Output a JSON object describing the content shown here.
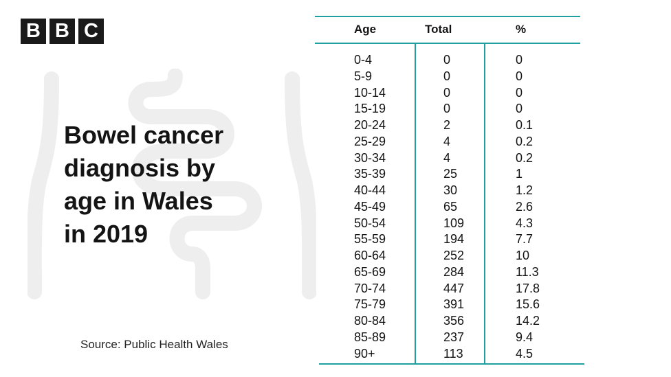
{
  "brand": {
    "logo_letters": [
      "B",
      "B",
      "C"
    ]
  },
  "title": "Bowel cancer\ndiagnosis by\nage in Wales\nin 2019",
  "source": "Source: Public Health Wales",
  "colors": {
    "rule": "#1fa0a0",
    "illustration": "#eeeeee",
    "logo": "#1a1a1a"
  },
  "chart_data": {
    "type": "table",
    "columns": [
      "Age",
      "Total",
      "%"
    ],
    "rows": [
      [
        "0-4",
        "0",
        "0"
      ],
      [
        "5-9",
        "0",
        "0"
      ],
      [
        "10-14",
        "0",
        "0"
      ],
      [
        "15-19",
        "0",
        "0"
      ],
      [
        "20-24",
        "2",
        "0.1"
      ],
      [
        "25-29",
        "4",
        "0.2"
      ],
      [
        "30-34",
        "4",
        "0.2"
      ],
      [
        "35-39",
        "25",
        "1"
      ],
      [
        "40-44",
        "30",
        "1.2"
      ],
      [
        "45-49",
        "65",
        "2.6"
      ],
      [
        "50-54",
        "109",
        "4.3"
      ],
      [
        "55-59",
        "194",
        "7.7"
      ],
      [
        "60-64",
        "252",
        "10"
      ],
      [
        "65-69",
        "284",
        "11.3"
      ],
      [
        "70-74",
        "447",
        "17.8"
      ],
      [
        "75-79",
        "391",
        "15.6"
      ],
      [
        "80-84",
        "356",
        "14.2"
      ],
      [
        "85-89",
        "237",
        "9.4"
      ],
      [
        "90+",
        "113",
        "4.5"
      ]
    ]
  }
}
